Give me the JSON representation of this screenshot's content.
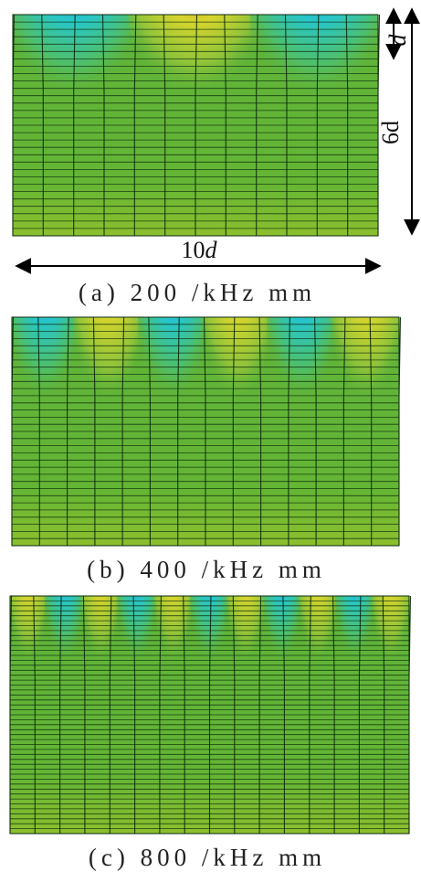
{
  "panels": [
    {
      "id": "a",
      "caption": "(a) 200 /kHz mm",
      "lobes_top": [
        {
          "color": "blue"
        },
        {
          "color": "magenta"
        },
        {
          "color": "blue"
        }
      ]
    },
    {
      "id": "b",
      "caption": "(b) 400 /kHz mm",
      "lobes_top": [
        {
          "color": "blue"
        },
        {
          "color": "red"
        },
        {
          "color": "blue"
        },
        {
          "color": "red"
        },
        {
          "color": "blue"
        },
        {
          "color": "red"
        }
      ]
    },
    {
      "id": "c",
      "caption": "(c) 800 /kHz mm",
      "lobes_top": [
        {
          "color": "red"
        },
        {
          "color": "blue"
        },
        {
          "color": "red"
        },
        {
          "color": "blue"
        },
        {
          "color": "red"
        },
        {
          "color": "blue"
        },
        {
          "color": "red"
        },
        {
          "color": "blue"
        },
        {
          "color": "red"
        },
        {
          "color": "blue"
        },
        {
          "color": "red"
        }
      ]
    }
  ],
  "dimensions": {
    "depth_small": "d",
    "depth_total": "6d",
    "width_number": "10",
    "width_symbol": "d"
  },
  "colors": {
    "background_mesh": "#5fb33a",
    "mesh_line": "#0b2a0b",
    "blue": "#2a3be0",
    "cyan": "#27c6c9",
    "magenta": "#c43ad0",
    "red": "#d62525",
    "yellow": "#d7d52d",
    "arrow": "#000000"
  }
}
